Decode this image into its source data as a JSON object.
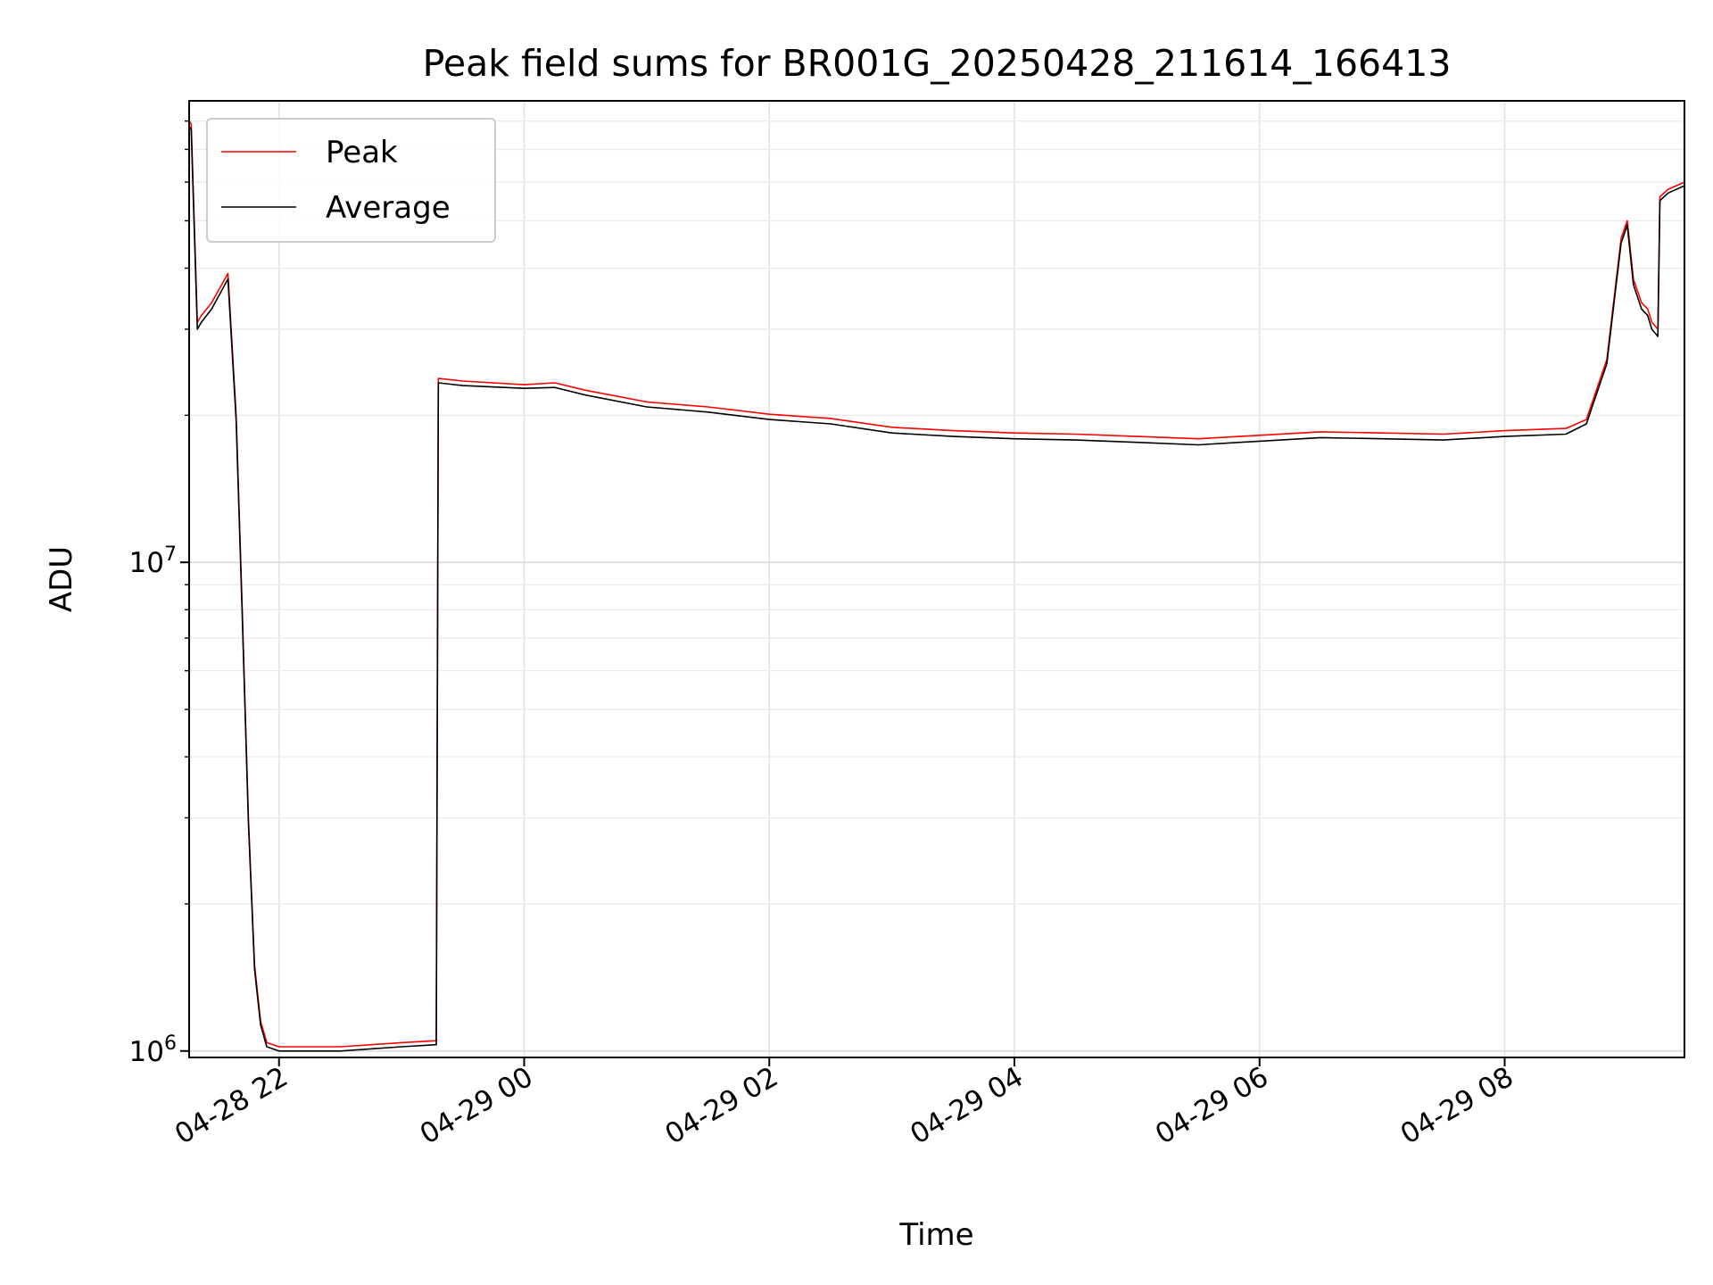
{
  "chart_data": {
    "type": "line",
    "title": "Peak field sums for BR001G_20250428_211614_166413",
    "xlabel": "Time",
    "ylabel": "ADU",
    "yscale": "log",
    "xlim": [
      "2025-04-28 21:16",
      "2025-04-29 09:28"
    ],
    "ylim": [
      970000,
      88000000
    ],
    "grid": true,
    "legend_position": "top-left",
    "x_tick_values": [
      "2025-04-28 22:00",
      "2025-04-29 00:00",
      "2025-04-29 02:00",
      "2025-04-29 04:00",
      "2025-04-29 06:00",
      "2025-04-29 08:00"
    ],
    "x_tick_labels": [
      "04-28 22",
      "04-29 00",
      "04-29 02",
      "04-29 04",
      "04-29 06",
      "04-29 08"
    ],
    "y_ticks": [
      {
        "value": 1000000,
        "base": "10",
        "exp": "6"
      },
      {
        "value": 10000000,
        "base": "10",
        "exp": "7"
      }
    ],
    "x": [
      "2025-04-28 21:16",
      "2025-04-28 21:17",
      "2025-04-28 21:20",
      "2025-04-28 21:22",
      "2025-04-28 21:27",
      "2025-04-28 21:35",
      "2025-04-28 21:39",
      "2025-04-28 21:42",
      "2025-04-28 21:45",
      "2025-04-28 21:48",
      "2025-04-28 21:51",
      "2025-04-28 21:54",
      "2025-04-28 22:00",
      "2025-04-28 22:30",
      "2025-04-28 23:00",
      "2025-04-28 23:17",
      "2025-04-28 23:18",
      "2025-04-28 23:30",
      "2025-04-29 00:00",
      "2025-04-29 00:15",
      "2025-04-29 00:30",
      "2025-04-29 01:00",
      "2025-04-29 01:30",
      "2025-04-29 02:00",
      "2025-04-29 02:30",
      "2025-04-29 03:00",
      "2025-04-29 03:30",
      "2025-04-29 04:00",
      "2025-04-29 04:30",
      "2025-04-29 05:00",
      "2025-04-29 05:30",
      "2025-04-29 06:00",
      "2025-04-29 06:30",
      "2025-04-29 07:00",
      "2025-04-29 07:30",
      "2025-04-29 08:00",
      "2025-04-29 08:30",
      "2025-04-29 08:40",
      "2025-04-29 08:50",
      "2025-04-29 08:57",
      "2025-04-29 09:00",
      "2025-04-29 09:03",
      "2025-04-29 09:07",
      "2025-04-29 09:10",
      "2025-04-29 09:12",
      "2025-04-29 09:15",
      "2025-04-29 09:16",
      "2025-04-29 09:20",
      "2025-04-29 09:28"
    ],
    "series": [
      {
        "name": "Peak",
        "color": "#ff0000",
        "values": [
          80000000,
          79000000,
          31000000,
          32000000,
          34000000,
          39000000,
          20000000,
          8000000,
          3000000,
          1500000,
          1150000,
          1040000,
          1020000,
          1020000,
          1040000,
          1050000,
          23800000,
          23500000,
          23100000,
          23300000,
          22500000,
          21300000,
          20800000,
          20100000,
          19700000,
          18900000,
          18600000,
          18400000,
          18300000,
          18100000,
          17900000,
          18200000,
          18500000,
          18400000,
          18300000,
          18600000,
          18800000,
          19600000,
          26000000,
          46000000,
          50000000,
          38000000,
          34000000,
          33000000,
          31000000,
          30000000,
          56000000,
          58000000,
          60000000
        ]
      },
      {
        "name": "Average",
        "color": "#000000",
        "values": [
          78000000,
          77000000,
          30000000,
          31000000,
          33000000,
          38000000,
          19500000,
          7800000,
          2950000,
          1470000,
          1130000,
          1020000,
          1000000,
          1000000,
          1020000,
          1030000,
          23300000,
          23000000,
          22700000,
          22800000,
          22000000,
          20800000,
          20300000,
          19600000,
          19200000,
          18400000,
          18100000,
          17900000,
          17800000,
          17600000,
          17400000,
          17700000,
          18000000,
          17900000,
          17800000,
          18100000,
          18300000,
          19200000,
          25500000,
          45000000,
          49000000,
          37000000,
          33000000,
          32000000,
          30000000,
          29000000,
          55000000,
          57000000,
          59000000
        ]
      }
    ]
  }
}
